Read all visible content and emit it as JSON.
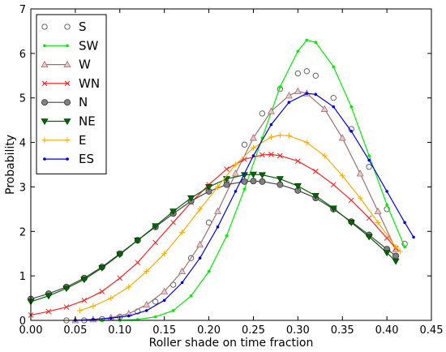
{
  "chart_data": {
    "type": "line",
    "title": "",
    "xlabel": "Roller shade on time fraction",
    "ylabel": "Probability",
    "xlim": [
      0.0,
      0.45
    ],
    "ylim": [
      0,
      7
    ],
    "xticks": [
      "0.00",
      "0.05",
      "0.10",
      "0.15",
      "0.20",
      "0.25",
      "0.30",
      "0.35",
      "0.40",
      "0.45"
    ],
    "yticks": [
      "0",
      "1",
      "2",
      "3",
      "4",
      "5",
      "6",
      "7"
    ],
    "grid": false,
    "legend_position": "top-left",
    "series": [
      {
        "name": "S",
        "color": "#555555",
        "marker": "circle-open",
        "line": false,
        "x": [
          0.04,
          0.06,
          0.08,
          0.1,
          0.12,
          0.14,
          0.16,
          0.18,
          0.2,
          0.22,
          0.24,
          0.26,
          0.28,
          0.3,
          0.31,
          0.32,
          0.34,
          0.36,
          0.38,
          0.4,
          0.42
        ],
        "y": [
          0.0,
          0.0,
          0.03,
          0.08,
          0.2,
          0.42,
          0.8,
          1.4,
          2.2,
          3.1,
          3.95,
          4.65,
          5.2,
          5.55,
          5.6,
          5.5,
          5.0,
          4.3,
          3.45,
          2.5,
          1.72
        ]
      },
      {
        "name": "SW",
        "color": "#00ee00",
        "marker": "dot",
        "line": true,
        "x": [
          0.08,
          0.1,
          0.12,
          0.14,
          0.16,
          0.18,
          0.2,
          0.22,
          0.24,
          0.26,
          0.28,
          0.3,
          0.31,
          0.32,
          0.34,
          0.36,
          0.38,
          0.4,
          0.42
        ],
        "y": [
          0.0,
          0.0,
          0.02,
          0.08,
          0.22,
          0.55,
          1.1,
          1.9,
          2.95,
          4.1,
          5.25,
          6.05,
          6.3,
          6.25,
          5.7,
          4.8,
          3.7,
          2.6,
          1.65
        ]
      },
      {
        "name": "W",
        "color": "#a07070",
        "marker": "triangle-open",
        "line": true,
        "x": [
          0.05,
          0.07,
          0.09,
          0.11,
          0.13,
          0.15,
          0.17,
          0.19,
          0.21,
          0.23,
          0.25,
          0.27,
          0.29,
          0.3,
          0.31,
          0.33,
          0.35,
          0.37,
          0.39,
          0.41
        ],
        "y": [
          0.0,
          0.02,
          0.06,
          0.15,
          0.35,
          0.65,
          1.1,
          1.7,
          2.45,
          3.3,
          4.1,
          4.7,
          5.05,
          5.15,
          5.1,
          4.75,
          4.1,
          3.3,
          2.45,
          1.6
        ]
      },
      {
        "name": "WN",
        "color": "#ff2222",
        "marker": "x",
        "line": true,
        "x": [
          0.0,
          0.02,
          0.04,
          0.06,
          0.08,
          0.1,
          0.12,
          0.14,
          0.16,
          0.18,
          0.2,
          0.22,
          0.24,
          0.26,
          0.27,
          0.28,
          0.3,
          0.32,
          0.34,
          0.36,
          0.38,
          0.4,
          0.41
        ],
        "y": [
          0.12,
          0.2,
          0.3,
          0.45,
          0.65,
          0.95,
          1.3,
          1.75,
          2.2,
          2.65,
          3.05,
          3.4,
          3.62,
          3.72,
          3.73,
          3.7,
          3.58,
          3.35,
          3.05,
          2.7,
          2.3,
          1.85,
          1.62
        ]
      },
      {
        "name": "N",
        "color": "#444444",
        "marker": "circle-filled",
        "line": true,
        "x": [
          0.0,
          0.02,
          0.04,
          0.06,
          0.08,
          0.1,
          0.12,
          0.14,
          0.16,
          0.18,
          0.2,
          0.22,
          0.24,
          0.25,
          0.26,
          0.28,
          0.3,
          0.32,
          0.34,
          0.36,
          0.38,
          0.4,
          0.41
        ],
        "y": [
          0.48,
          0.6,
          0.75,
          0.95,
          1.2,
          1.5,
          1.8,
          2.1,
          2.4,
          2.68,
          2.9,
          3.05,
          3.12,
          3.13,
          3.12,
          3.05,
          2.92,
          2.75,
          2.5,
          2.22,
          1.92,
          1.6,
          1.45
        ]
      },
      {
        "name": "NE",
        "color": "#006600",
        "marker": "triangle-down",
        "line": true,
        "x": [
          0.0,
          0.02,
          0.04,
          0.06,
          0.08,
          0.1,
          0.12,
          0.14,
          0.16,
          0.18,
          0.2,
          0.22,
          0.24,
          0.25,
          0.26,
          0.28,
          0.3,
          0.32,
          0.34,
          0.36,
          0.38,
          0.4,
          0.41
        ],
        "y": [
          0.42,
          0.55,
          0.72,
          0.92,
          1.18,
          1.48,
          1.8,
          2.12,
          2.45,
          2.75,
          3.0,
          3.18,
          3.27,
          3.28,
          3.27,
          3.18,
          3.02,
          2.8,
          2.52,
          2.2,
          1.88,
          1.52,
          1.33
        ]
      },
      {
        "name": "E",
        "color": "#ffaa00",
        "marker": "plus",
        "line": true,
        "x": [
          0.055,
          0.07,
          0.09,
          0.11,
          0.13,
          0.15,
          0.17,
          0.19,
          0.21,
          0.23,
          0.25,
          0.27,
          0.28,
          0.29,
          0.31,
          0.33,
          0.35,
          0.37,
          0.39,
          0.41,
          0.415
        ],
        "y": [
          0.22,
          0.32,
          0.5,
          0.75,
          1.1,
          1.5,
          1.98,
          2.5,
          3.0,
          3.5,
          3.88,
          4.12,
          4.16,
          4.15,
          4.0,
          3.7,
          3.25,
          2.75,
          2.2,
          1.65,
          1.55
        ]
      },
      {
        "name": "ES",
        "color": "#0000ee",
        "marker": "dot",
        "line": true,
        "x": [
          0.05,
          0.07,
          0.09,
          0.11,
          0.13,
          0.15,
          0.17,
          0.19,
          0.21,
          0.23,
          0.25,
          0.27,
          0.29,
          0.31,
          0.32,
          0.34,
          0.36,
          0.38,
          0.4,
          0.42,
          0.43
        ],
        "y": [
          0.0,
          0.02,
          0.05,
          0.1,
          0.22,
          0.45,
          0.85,
          1.4,
          2.1,
          2.9,
          3.7,
          4.4,
          4.9,
          5.1,
          5.08,
          4.8,
          4.25,
          3.6,
          2.9,
          2.2,
          1.87
        ]
      }
    ]
  }
}
